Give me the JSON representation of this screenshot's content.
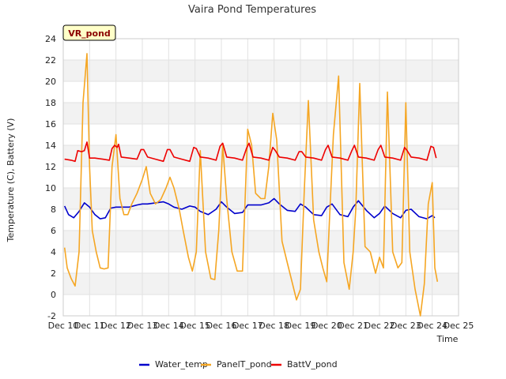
{
  "chart_data": {
    "type": "line",
    "title": "Vaira Pond Temperatures",
    "tag": "VR_pond",
    "xlabel": "Time",
    "ylabel": "Temperature (C), Battery (V)",
    "ylim": [
      -2,
      24
    ],
    "yticks": [
      -2,
      0,
      2,
      4,
      6,
      8,
      10,
      12,
      14,
      16,
      18,
      20,
      22,
      24
    ],
    "xlim": [
      10,
      25
    ],
    "xticks": [
      {
        "v": 10,
        "label": "Dec 10"
      },
      {
        "v": 11,
        "label": "Dec 11"
      },
      {
        "v": 12,
        "label": "Dec 12"
      },
      {
        "v": 13,
        "label": "Dec 13"
      },
      {
        "v": 14,
        "label": "Dec 14"
      },
      {
        "v": 15,
        "label": "Dec 15"
      },
      {
        "v": 16,
        "label": "Dec 16"
      },
      {
        "v": 17,
        "label": "Dec 17"
      },
      {
        "v": 18,
        "label": "Dec 18"
      },
      {
        "v": 19,
        "label": "Dec 19"
      },
      {
        "v": 20,
        "label": "Dec 20"
      },
      {
        "v": 21,
        "label": "Dec 21"
      },
      {
        "v": 22,
        "label": "Dec 22"
      },
      {
        "v": 23,
        "label": "Dec 23"
      },
      {
        "v": 24,
        "label": "Dec 24"
      },
      {
        "v": 25,
        "label": "Dec 25"
      }
    ],
    "grid": true,
    "legend_position": "bottom",
    "series": [
      {
        "name": "Water_temp",
        "color": "#0000cc",
        "x": [
          10.05,
          10.2,
          10.4,
          10.6,
          10.8,
          11.0,
          11.2,
          11.4,
          11.6,
          11.8,
          12.0,
          12.2,
          12.5,
          12.8,
          13.0,
          13.2,
          13.5,
          13.8,
          14.0,
          14.2,
          14.5,
          14.8,
          15.0,
          15.2,
          15.5,
          15.8,
          16.0,
          16.2,
          16.5,
          16.8,
          17.0,
          17.2,
          17.5,
          17.8,
          18.0,
          18.2,
          18.5,
          18.8,
          19.0,
          19.2,
          19.5,
          19.8,
          20.0,
          20.2,
          20.5,
          20.8,
          21.0,
          21.2,
          21.5,
          21.8,
          22.0,
          22.2,
          22.5,
          22.8,
          23.0,
          23.2,
          23.5,
          23.8,
          24.0,
          24.1
        ],
        "y": [
          8.3,
          7.5,
          7.2,
          7.8,
          8.6,
          8.2,
          7.5,
          7.1,
          7.2,
          8.1,
          8.2,
          8.2,
          8.2,
          8.4,
          8.5,
          8.5,
          8.6,
          8.7,
          8.5,
          8.2,
          8.0,
          8.3,
          8.2,
          7.8,
          7.5,
          8.0,
          8.7,
          8.2,
          7.6,
          7.7,
          8.4,
          8.4,
          8.4,
          8.6,
          9.0,
          8.5,
          7.9,
          7.8,
          8.5,
          8.2,
          7.5,
          7.4,
          8.2,
          8.5,
          7.5,
          7.3,
          8.2,
          8.8,
          7.9,
          7.2,
          7.6,
          8.3,
          7.6,
          7.2,
          7.9,
          8.0,
          7.3,
          7.1,
          7.4,
          7.2
        ]
      },
      {
        "name": "PanelT_pond",
        "color": "#f5a623",
        "x": [
          10.05,
          10.15,
          10.3,
          10.45,
          10.6,
          10.75,
          10.9,
          11.0,
          11.1,
          11.25,
          11.4,
          11.55,
          11.7,
          11.85,
          12.0,
          12.15,
          12.3,
          12.45,
          12.6,
          12.8,
          13.0,
          13.15,
          13.3,
          13.5,
          13.7,
          13.9,
          14.05,
          14.2,
          14.4,
          14.55,
          14.75,
          14.9,
          15.05,
          15.2,
          15.4,
          15.6,
          15.75,
          15.9,
          16.05,
          16.2,
          16.4,
          16.6,
          16.8,
          17.0,
          17.15,
          17.3,
          17.5,
          17.65,
          17.8,
          17.95,
          18.1,
          18.3,
          18.5,
          18.7,
          18.85,
          19.0,
          19.15,
          19.3,
          19.5,
          19.7,
          19.85,
          20.0,
          20.1,
          20.25,
          20.45,
          20.65,
          20.85,
          21.0,
          21.1,
          21.25,
          21.45,
          21.65,
          21.85,
          22.0,
          22.15,
          22.3,
          22.5,
          22.7,
          22.85,
          23.0,
          23.15,
          23.35,
          23.55,
          23.7,
          23.85,
          24.0,
          24.1,
          24.2
        ],
        "y": [
          4.4,
          2.5,
          1.5,
          0.8,
          4.0,
          18.0,
          22.6,
          12.0,
          6.0,
          4.0,
          2.5,
          2.4,
          2.5,
          12.0,
          15.0,
          9.0,
          7.5,
          7.5,
          8.5,
          9.5,
          10.8,
          12.0,
          9.5,
          8.5,
          8.9,
          10.0,
          11.0,
          10.0,
          8.0,
          6.0,
          3.5,
          2.2,
          4.0,
          13.5,
          4.0,
          1.5,
          1.4,
          6.0,
          14.0,
          9.0,
          4.0,
          2.2,
          2.2,
          15.5,
          14.0,
          9.5,
          9.0,
          9.0,
          12.0,
          17.0,
          14.5,
          5.0,
          3.0,
          1.0,
          -0.5,
          0.5,
          10.0,
          18.2,
          7.0,
          4.0,
          2.5,
          1.2,
          7.0,
          15.0,
          20.5,
          3.0,
          0.5,
          4.0,
          8.0,
          19.8,
          4.5,
          4.0,
          2.0,
          3.5,
          2.5,
          19.0,
          4.0,
          2.5,
          3.0,
          18.0,
          4.0,
          0.5,
          -2.0,
          1.0,
          8.5,
          10.5,
          2.5,
          1.2
        ]
      },
      {
        "name": "BattV_pond",
        "color": "#ee0000",
        "x": [
          10.05,
          10.3,
          10.45,
          10.55,
          10.7,
          10.8,
          10.9,
          11.0,
          11.2,
          11.5,
          11.75,
          11.85,
          11.95,
          12.05,
          12.1,
          12.2,
          12.5,
          12.8,
          12.95,
          13.05,
          13.2,
          13.5,
          13.8,
          13.95,
          14.05,
          14.2,
          14.5,
          14.8,
          14.95,
          15.05,
          15.2,
          15.5,
          15.8,
          15.95,
          16.05,
          16.2,
          16.5,
          16.8,
          16.95,
          17.05,
          17.2,
          17.5,
          17.8,
          17.95,
          18.05,
          18.2,
          18.5,
          18.8,
          18.95,
          19.05,
          19.2,
          19.5,
          19.8,
          19.95,
          20.05,
          20.2,
          20.5,
          20.8,
          20.95,
          21.05,
          21.2,
          21.5,
          21.8,
          21.95,
          22.05,
          22.2,
          22.5,
          22.8,
          22.95,
          23.05,
          23.2,
          23.5,
          23.8,
          23.95,
          24.05,
          24.15
        ],
        "y": [
          12.7,
          12.6,
          12.5,
          13.5,
          13.4,
          13.5,
          14.3,
          12.8,
          12.8,
          12.7,
          12.6,
          13.7,
          14.0,
          13.8,
          14.1,
          12.9,
          12.8,
          12.7,
          13.6,
          13.6,
          12.9,
          12.7,
          12.5,
          13.6,
          13.6,
          12.9,
          12.7,
          12.5,
          13.8,
          13.7,
          12.9,
          12.8,
          12.6,
          13.9,
          14.2,
          12.9,
          12.8,
          12.6,
          13.7,
          14.2,
          12.9,
          12.8,
          12.6,
          13.8,
          13.5,
          12.9,
          12.8,
          12.6,
          13.4,
          13.4,
          12.9,
          12.8,
          12.6,
          13.6,
          14.0,
          12.9,
          12.8,
          12.6,
          13.5,
          14.0,
          12.9,
          12.8,
          12.6,
          13.6,
          14.0,
          12.9,
          12.8,
          12.6,
          13.8,
          13.5,
          12.9,
          12.8,
          12.6,
          13.9,
          13.8,
          12.8
        ]
      }
    ]
  }
}
